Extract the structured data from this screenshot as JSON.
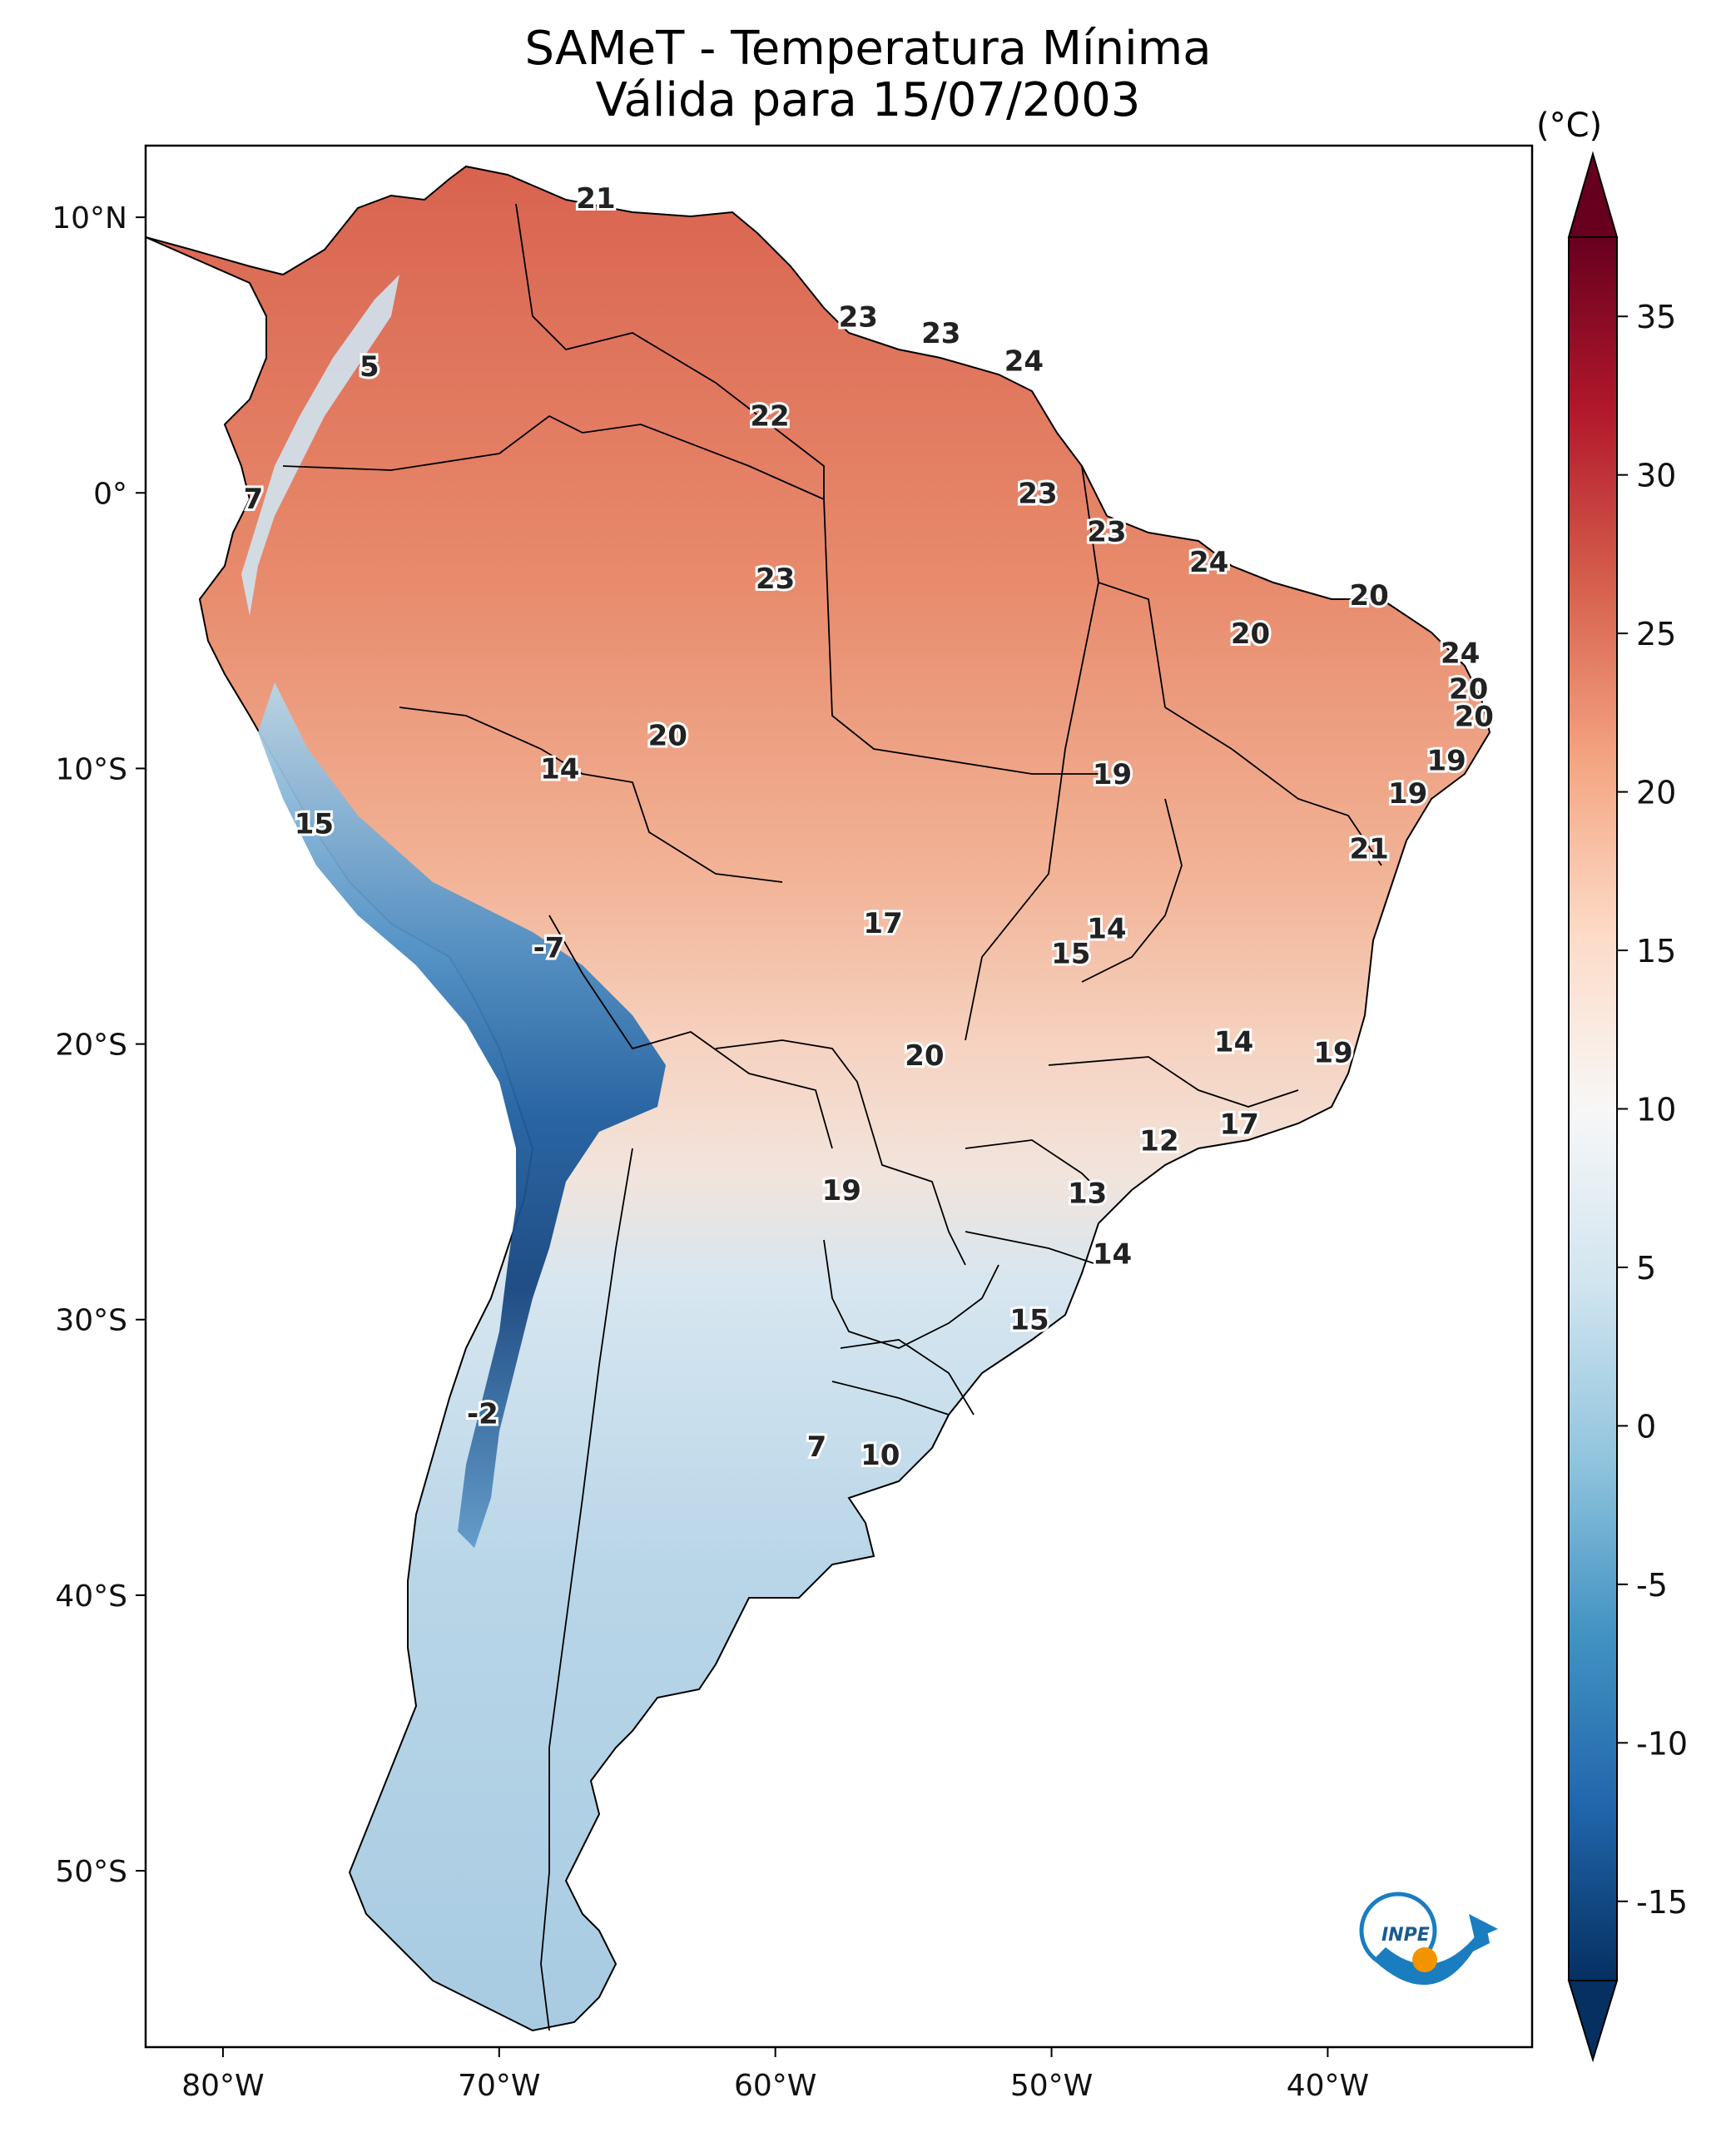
{
  "title": {
    "line1": "SAMeT - Temperatura Mínima",
    "line2": "Válida para 15/07/2003"
  },
  "map": {
    "region": "South America",
    "lon_range": [
      -82.8,
      -32.6
    ],
    "lat_range": [
      -56.4,
      12.6
    ],
    "lon_ticks": [
      "80°W",
      "70°W",
      "60°W",
      "50°W",
      "40°W"
    ],
    "lat_ticks": [
      "10°N",
      "0°",
      "10°S",
      "20°S",
      "30°S",
      "40°S",
      "50°S"
    ],
    "point_labels": [
      {
        "value": "21",
        "lon": -66.5,
        "lat": 10.7
      },
      {
        "value": "5",
        "lon": -74.7,
        "lat": 4.6
      },
      {
        "value": "7",
        "lon": -78.9,
        "lat": -0.2
      },
      {
        "value": "23",
        "lon": -57.0,
        "lat": 6.4
      },
      {
        "value": "23",
        "lon": -54.0,
        "lat": 5.8
      },
      {
        "value": "24",
        "lon": -51.0,
        "lat": 4.8
      },
      {
        "value": "22",
        "lon": -60.2,
        "lat": 2.8
      },
      {
        "value": "23",
        "lon": -50.5,
        "lat": 0.0
      },
      {
        "value": "23",
        "lon": -48.0,
        "lat": -1.4
      },
      {
        "value": "23",
        "lon": -60.0,
        "lat": -3.1
      },
      {
        "value": "24",
        "lon": -44.3,
        "lat": -2.5
      },
      {
        "value": "20",
        "lon": -38.5,
        "lat": -3.7
      },
      {
        "value": "20",
        "lon": -42.8,
        "lat": -5.1
      },
      {
        "value": "24",
        "lon": -35.2,
        "lat": -5.8
      },
      {
        "value": "20",
        "lon": -34.9,
        "lat": -7.1
      },
      {
        "value": "20",
        "lon": -34.7,
        "lat": -8.1
      },
      {
        "value": "19",
        "lon": -35.7,
        "lat": -9.7
      },
      {
        "value": "19",
        "lon": -37.1,
        "lat": -10.9
      },
      {
        "value": "21",
        "lon": -38.5,
        "lat": -12.9
      },
      {
        "value": "20",
        "lon": -63.9,
        "lat": -8.8
      },
      {
        "value": "14",
        "lon": -67.8,
        "lat": -10.0
      },
      {
        "value": "19",
        "lon": -47.8,
        "lat": -10.2
      },
      {
        "value": "15",
        "lon": -76.7,
        "lat": -12.0
      },
      {
        "value": "17",
        "lon": -56.1,
        "lat": -15.6
      },
      {
        "value": "14",
        "lon": -48.0,
        "lat": -15.8
      },
      {
        "value": "15",
        "lon": -49.3,
        "lat": -16.7
      },
      {
        "value": "-7",
        "lon": -68.2,
        "lat": -16.5
      },
      {
        "value": "20",
        "lon": -54.6,
        "lat": -20.4
      },
      {
        "value": "14",
        "lon": -43.4,
        "lat": -19.9
      },
      {
        "value": "19",
        "lon": -39.8,
        "lat": -20.3
      },
      {
        "value": "17",
        "lon": -43.2,
        "lat": -22.9
      },
      {
        "value": "12",
        "lon": -46.1,
        "lat": -23.5
      },
      {
        "value": "19",
        "lon": -57.6,
        "lat": -25.3
      },
      {
        "value": "13",
        "lon": -48.7,
        "lat": -25.4
      },
      {
        "value": "14",
        "lon": -47.8,
        "lat": -27.6
      },
      {
        "value": "15",
        "lon": -50.8,
        "lat": -30.0
      },
      {
        "value": "-2",
        "lon": -70.6,
        "lat": -33.4
      },
      {
        "value": "7",
        "lon": -58.5,
        "lat": -34.6
      },
      {
        "value": "10",
        "lon": -56.2,
        "lat": -34.9
      }
    ]
  },
  "colorbar": {
    "unit": "(°C)",
    "min": -17.5,
    "max": 37.5,
    "tick_values": [
      35,
      30,
      25,
      20,
      15,
      10,
      5,
      0,
      -5,
      -10,
      -15
    ],
    "tick_labels": [
      "35",
      "30",
      "25",
      "20",
      "15",
      "10",
      "5",
      "0",
      "-5",
      "-10",
      "-15"
    ],
    "colormap": "RdBu_r",
    "colors": [
      "#053061",
      "#2166ac",
      "#4393c3",
      "#92c5de",
      "#d1e5f0",
      "#f7f7f7",
      "#fddbc7",
      "#f4a582",
      "#d6604d",
      "#b2182b",
      "#67001f"
    ]
  },
  "logo": {
    "text": "INPE"
  },
  "colors": {
    "frame": "#000000",
    "ocean": "#ffffff",
    "border_line": "#000000",
    "logo_blue": "#1a7dc0",
    "logo_orange": "#f29400"
  }
}
